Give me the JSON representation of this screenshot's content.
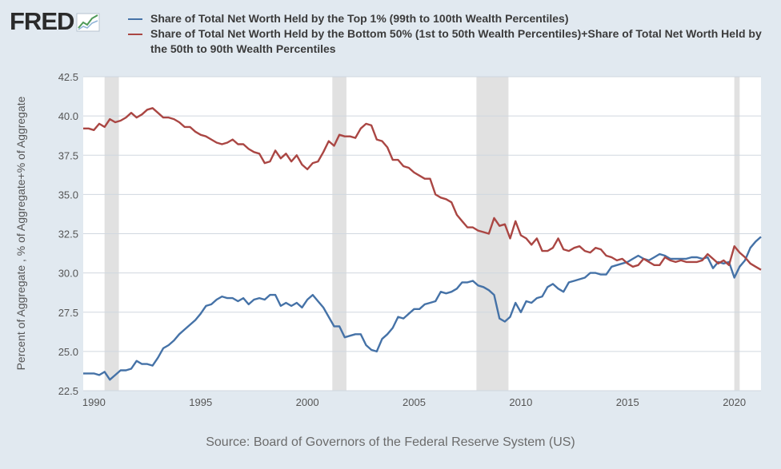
{
  "logo": {
    "text": "FRED"
  },
  "colors": {
    "background": "#e1e9f0",
    "plot_background": "#ffffff",
    "gridline": "#d0d7df",
    "recession": "#e1e1e1",
    "series_top1": "#4572a7",
    "series_bottom90": "#aa4643"
  },
  "legend": [
    {
      "label": "Share of Total Net Worth Held by the Top 1% (99th to 100th Wealth Percentiles)",
      "color": "#4572a7"
    },
    {
      "label": "Share of Total Net Worth Held by the Bottom 50% (1st to 50th Wealth Percentiles)+Share of Total Net Worth Held by the 50th to 90th Wealth Percentiles",
      "color": "#aa4643"
    }
  ],
  "source": "Source: Board of Governors of the Federal Reserve System (US)",
  "chart_data": {
    "type": "line",
    "ylabel": "Percent of Aggregate , % of Aggregate+% of Aggregate",
    "xlabel": "",
    "xlim": [
      1989.5,
      2021.25
    ],
    "ylim": [
      22.5,
      42.5
    ],
    "yticks": [
      22.5,
      25.0,
      27.5,
      30.0,
      32.5,
      35.0,
      37.5,
      40.0,
      42.5
    ],
    "xticks": [
      1990,
      1995,
      2000,
      2005,
      2010,
      2015,
      2020
    ],
    "grid": true,
    "recessions": [
      [
        1990.5,
        1991.17
      ],
      [
        2001.17,
        2001.83
      ],
      [
        2007.92,
        2009.42
      ],
      [
        2020.0,
        2020.25
      ]
    ],
    "series": [
      {
        "name": "Share of Total Net Worth Held by the Top 1% (99th to 100th Wealth Percentiles)",
        "color": "#4572a7",
        "points": [
          [
            1989.5,
            23.6
          ],
          [
            1990.0,
            23.6
          ],
          [
            1990.25,
            23.5
          ],
          [
            1990.5,
            23.7
          ],
          [
            1990.75,
            23.2
          ],
          [
            1991.0,
            23.5
          ],
          [
            1991.25,
            23.8
          ],
          [
            1991.5,
            23.8
          ],
          [
            1991.75,
            23.9
          ],
          [
            1992.0,
            24.4
          ],
          [
            1992.25,
            24.2
          ],
          [
            1992.5,
            24.2
          ],
          [
            1992.75,
            24.1
          ],
          [
            1993.0,
            24.6
          ],
          [
            1993.25,
            25.2
          ],
          [
            1993.5,
            25.4
          ],
          [
            1993.75,
            25.7
          ],
          [
            1994.0,
            26.1
          ],
          [
            1994.25,
            26.4
          ],
          [
            1994.5,
            26.7
          ],
          [
            1994.75,
            27.0
          ],
          [
            1995.0,
            27.4
          ],
          [
            1995.25,
            27.9
          ],
          [
            1995.5,
            28.0
          ],
          [
            1995.75,
            28.3
          ],
          [
            1996.0,
            28.5
          ],
          [
            1996.25,
            28.4
          ],
          [
            1996.5,
            28.4
          ],
          [
            1996.75,
            28.2
          ],
          [
            1997.0,
            28.4
          ],
          [
            1997.25,
            28.0
          ],
          [
            1997.5,
            28.3
          ],
          [
            1997.75,
            28.4
          ],
          [
            1998.0,
            28.3
          ],
          [
            1998.25,
            28.6
          ],
          [
            1998.5,
            28.6
          ],
          [
            1998.75,
            27.9
          ],
          [
            1999.0,
            28.1
          ],
          [
            1999.25,
            27.9
          ],
          [
            1999.5,
            28.1
          ],
          [
            1999.75,
            27.8
          ],
          [
            2000.0,
            28.3
          ],
          [
            2000.25,
            28.6
          ],
          [
            2000.5,
            28.2
          ],
          [
            2000.75,
            27.8
          ],
          [
            2001.0,
            27.2
          ],
          [
            2001.25,
            26.6
          ],
          [
            2001.5,
            26.6
          ],
          [
            2001.75,
            25.9
          ],
          [
            2002.0,
            26.0
          ],
          [
            2002.25,
            26.1
          ],
          [
            2002.5,
            26.1
          ],
          [
            2002.75,
            25.4
          ],
          [
            2003.0,
            25.1
          ],
          [
            2003.25,
            25.0
          ],
          [
            2003.5,
            25.8
          ],
          [
            2003.75,
            26.1
          ],
          [
            2004.0,
            26.5
          ],
          [
            2004.25,
            27.2
          ],
          [
            2004.5,
            27.1
          ],
          [
            2004.75,
            27.4
          ],
          [
            2005.0,
            27.7
          ],
          [
            2005.25,
            27.7
          ],
          [
            2005.5,
            28.0
          ],
          [
            2005.75,
            28.1
          ],
          [
            2006.0,
            28.2
          ],
          [
            2006.25,
            28.8
          ],
          [
            2006.5,
            28.7
          ],
          [
            2006.75,
            28.8
          ],
          [
            2007.0,
            29.0
          ],
          [
            2007.25,
            29.4
          ],
          [
            2007.5,
            29.4
          ],
          [
            2007.75,
            29.5
          ],
          [
            2008.0,
            29.2
          ],
          [
            2008.25,
            29.1
          ],
          [
            2008.5,
            28.9
          ],
          [
            2008.75,
            28.6
          ],
          [
            2009.0,
            27.1
          ],
          [
            2009.25,
            26.9
          ],
          [
            2009.5,
            27.2
          ],
          [
            2009.75,
            28.1
          ],
          [
            2010.0,
            27.5
          ],
          [
            2010.25,
            28.2
          ],
          [
            2010.5,
            28.1
          ],
          [
            2010.75,
            28.4
          ],
          [
            2011.0,
            28.5
          ],
          [
            2011.25,
            29.1
          ],
          [
            2011.5,
            29.3
          ],
          [
            2011.75,
            29.0
          ],
          [
            2012.0,
            28.8
          ],
          [
            2012.25,
            29.4
          ],
          [
            2012.5,
            29.5
          ],
          [
            2012.75,
            29.6
          ],
          [
            2013.0,
            29.7
          ],
          [
            2013.25,
            30.0
          ],
          [
            2013.5,
            30.0
          ],
          [
            2013.75,
            29.9
          ],
          [
            2014.0,
            29.9
          ],
          [
            2014.25,
            30.4
          ],
          [
            2014.5,
            30.5
          ],
          [
            2014.75,
            30.6
          ],
          [
            2015.0,
            30.7
          ],
          [
            2015.25,
            30.9
          ],
          [
            2015.5,
            31.1
          ],
          [
            2015.75,
            30.9
          ],
          [
            2016.0,
            30.8
          ],
          [
            2016.25,
            31.0
          ],
          [
            2016.5,
            31.2
          ],
          [
            2016.75,
            31.1
          ],
          [
            2017.0,
            30.9
          ],
          [
            2017.25,
            30.9
          ],
          [
            2017.5,
            30.9
          ],
          [
            2017.75,
            30.9
          ],
          [
            2018.0,
            31.0
          ],
          [
            2018.25,
            31.0
          ],
          [
            2018.5,
            30.9
          ],
          [
            2018.75,
            31.0
          ],
          [
            2019.0,
            30.3
          ],
          [
            2019.25,
            30.7
          ],
          [
            2019.5,
            30.6
          ],
          [
            2019.75,
            30.7
          ],
          [
            2020.0,
            29.7
          ],
          [
            2020.25,
            30.4
          ],
          [
            2020.5,
            30.8
          ],
          [
            2020.75,
            31.6
          ],
          [
            2021.0,
            32.0
          ],
          [
            2021.25,
            32.3
          ]
        ]
      },
      {
        "name": "Share of Total Net Worth Held by the Bottom 50% (1st to 50th Wealth Percentiles)+Share of Total Net Worth Held by the 50th to 90th Wealth Percentiles",
        "color": "#aa4643",
        "points": [
          [
            1989.5,
            39.2
          ],
          [
            1989.75,
            39.2
          ],
          [
            1990.0,
            39.1
          ],
          [
            1990.25,
            39.5
          ],
          [
            1990.5,
            39.3
          ],
          [
            1990.75,
            39.8
          ],
          [
            1991.0,
            39.6
          ],
          [
            1991.25,
            39.7
          ],
          [
            1991.5,
            39.9
          ],
          [
            1991.75,
            40.2
          ],
          [
            1992.0,
            39.9
          ],
          [
            1992.25,
            40.1
          ],
          [
            1992.5,
            40.4
          ],
          [
            1992.75,
            40.5
          ],
          [
            1993.0,
            40.2
          ],
          [
            1993.25,
            39.9
          ],
          [
            1993.5,
            39.9
          ],
          [
            1993.75,
            39.8
          ],
          [
            1994.0,
            39.6
          ],
          [
            1994.25,
            39.3
          ],
          [
            1994.5,
            39.3
          ],
          [
            1994.75,
            39.0
          ],
          [
            1995.0,
            38.8
          ],
          [
            1995.25,
            38.7
          ],
          [
            1995.5,
            38.5
          ],
          [
            1995.75,
            38.3
          ],
          [
            1996.0,
            38.2
          ],
          [
            1996.25,
            38.3
          ],
          [
            1996.5,
            38.5
          ],
          [
            1996.75,
            38.2
          ],
          [
            1997.0,
            38.2
          ],
          [
            1997.25,
            37.9
          ],
          [
            1997.5,
            37.7
          ],
          [
            1997.75,
            37.6
          ],
          [
            1998.0,
            37.0
          ],
          [
            1998.25,
            37.1
          ],
          [
            1998.5,
            37.8
          ],
          [
            1998.75,
            37.3
          ],
          [
            1999.0,
            37.6
          ],
          [
            1999.25,
            37.1
          ],
          [
            1999.5,
            37.5
          ],
          [
            1999.75,
            36.9
          ],
          [
            2000.0,
            36.6
          ],
          [
            2000.25,
            37.0
          ],
          [
            2000.5,
            37.1
          ],
          [
            2000.75,
            37.7
          ],
          [
            2001.0,
            38.4
          ],
          [
            2001.25,
            38.1
          ],
          [
            2001.5,
            38.8
          ],
          [
            2001.75,
            38.7
          ],
          [
            2002.0,
            38.7
          ],
          [
            2002.25,
            38.6
          ],
          [
            2002.5,
            39.2
          ],
          [
            2002.75,
            39.5
          ],
          [
            2003.0,
            39.4
          ],
          [
            2003.25,
            38.5
          ],
          [
            2003.5,
            38.4
          ],
          [
            2003.75,
            38.0
          ],
          [
            2004.0,
            37.2
          ],
          [
            2004.25,
            37.2
          ],
          [
            2004.5,
            36.8
          ],
          [
            2004.75,
            36.7
          ],
          [
            2005.0,
            36.4
          ],
          [
            2005.25,
            36.2
          ],
          [
            2005.5,
            36.0
          ],
          [
            2005.75,
            36.0
          ],
          [
            2006.0,
            35.0
          ],
          [
            2006.25,
            34.8
          ],
          [
            2006.5,
            34.7
          ],
          [
            2006.75,
            34.5
          ],
          [
            2007.0,
            33.7
          ],
          [
            2007.25,
            33.3
          ],
          [
            2007.5,
            32.9
          ],
          [
            2007.75,
            32.9
          ],
          [
            2008.0,
            32.7
          ],
          [
            2008.25,
            32.6
          ],
          [
            2008.5,
            32.5
          ],
          [
            2008.75,
            33.5
          ],
          [
            2009.0,
            33.0
          ],
          [
            2009.25,
            33.1
          ],
          [
            2009.5,
            32.2
          ],
          [
            2009.75,
            33.3
          ],
          [
            2010.0,
            32.4
          ],
          [
            2010.25,
            32.2
          ],
          [
            2010.5,
            31.8
          ],
          [
            2010.75,
            32.2
          ],
          [
            2011.0,
            31.4
          ],
          [
            2011.25,
            31.4
          ],
          [
            2011.5,
            31.6
          ],
          [
            2011.75,
            32.2
          ],
          [
            2012.0,
            31.5
          ],
          [
            2012.25,
            31.4
          ],
          [
            2012.5,
            31.6
          ],
          [
            2012.75,
            31.7
          ],
          [
            2013.0,
            31.4
          ],
          [
            2013.25,
            31.3
          ],
          [
            2013.5,
            31.6
          ],
          [
            2013.75,
            31.5
          ],
          [
            2014.0,
            31.1
          ],
          [
            2014.25,
            31.0
          ],
          [
            2014.5,
            30.8
          ],
          [
            2014.75,
            30.9
          ],
          [
            2015.0,
            30.6
          ],
          [
            2015.25,
            30.4
          ],
          [
            2015.5,
            30.5
          ],
          [
            2015.75,
            30.9
          ],
          [
            2016.0,
            30.7
          ],
          [
            2016.25,
            30.5
          ],
          [
            2016.5,
            30.5
          ],
          [
            2016.75,
            31.0
          ],
          [
            2017.0,
            30.8
          ],
          [
            2017.25,
            30.7
          ],
          [
            2017.5,
            30.8
          ],
          [
            2017.75,
            30.7
          ],
          [
            2018.0,
            30.7
          ],
          [
            2018.25,
            30.7
          ],
          [
            2018.5,
            30.8
          ],
          [
            2018.75,
            31.2
          ],
          [
            2019.0,
            30.9
          ],
          [
            2019.25,
            30.6
          ],
          [
            2019.5,
            30.8
          ],
          [
            2019.75,
            30.5
          ],
          [
            2020.0,
            31.7
          ],
          [
            2020.25,
            31.3
          ],
          [
            2020.5,
            31.0
          ],
          [
            2020.75,
            30.6
          ],
          [
            2021.0,
            30.4
          ],
          [
            2021.25,
            30.2
          ]
        ]
      }
    ]
  }
}
